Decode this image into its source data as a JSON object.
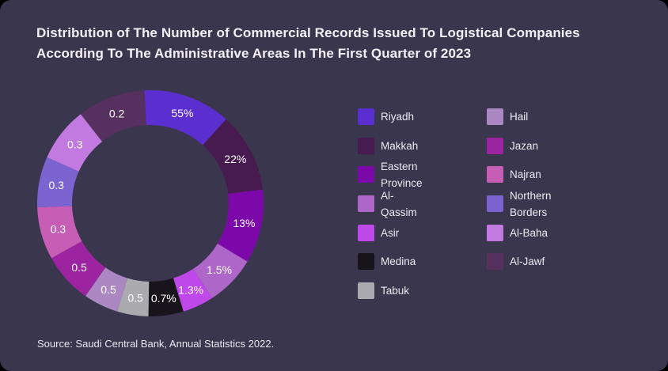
{
  "card": {
    "background": "#3a364e",
    "outer_background": "#000000"
  },
  "title": {
    "line1": "Distribution of The Number of Commercial Records Issued To Logistical Companies",
    "line2": "According To The Administrative Areas In The First Quarter of 2023"
  },
  "source": "Source: Saudi Central Bank, Annual Statistics 2022.",
  "legend": {
    "column_split": 7,
    "position": "right"
  },
  "chart_data": {
    "type": "pie",
    "subtype": "donut",
    "title": "Distribution of The Number of Commercial Records Issued To Logistical Companies According To The Administrative Areas In The First Quarter of 2023",
    "units": "percent of commercial records",
    "not_to_scale": true,
    "legend_position": "right",
    "segments": [
      {
        "label": "Riyadh",
        "value": 55,
        "value_label": "55%",
        "color": "#5b2ed0",
        "display_arc": {
          "start": -3,
          "end": 42
        }
      },
      {
        "label": "Makkah",
        "value": 22,
        "value_label": "22%",
        "color": "#471b50",
        "display_arc": {
          "start": 42,
          "end": 83
        }
      },
      {
        "label": "Eastern Province",
        "value": 13,
        "value_label": "13%",
        "color": "#7d08aa",
        "display_arc": {
          "start": 83,
          "end": 121
        }
      },
      {
        "label": "Al-Qassim",
        "value": 1.5,
        "value_label": "1.5%",
        "color": "#af66c9",
        "display_arc": {
          "start": 121,
          "end": 147
        }
      },
      {
        "label": "Asir",
        "value": 1.3,
        "value_label": "1.3%",
        "color": "#bf48ea",
        "display_arc": {
          "start": 147,
          "end": 163
        }
      },
      {
        "label": "Medina",
        "value": 0.7,
        "value_label": "0.7%",
        "color": "#17141c",
        "display_arc": {
          "start": 163,
          "end": 181
        }
      },
      {
        "label": "Tabuk",
        "value": 0.5,
        "value_label": "0.5",
        "color": "#ababaf",
        "display_arc": {
          "start": 181,
          "end": 197
        }
      },
      {
        "label": "Hail",
        "value": 0.5,
        "value_label": "0.5",
        "color": "#ac88c2",
        "display_arc": {
          "start": 197,
          "end": 215
        }
      },
      {
        "label": "Jazan",
        "value": 0.5,
        "value_label": "0.5",
        "color": "#9c24a0",
        "display_arc": {
          "start": 215,
          "end": 241
        }
      },
      {
        "label": "Najran",
        "value": 0.3,
        "value_label": "0.3",
        "color": "#c55eb4",
        "display_arc": {
          "start": 241,
          "end": 268
        }
      },
      {
        "label": "Northern Borders",
        "value": 0.3,
        "value_label": "0.3",
        "color": "#7b63d0",
        "display_arc": {
          "start": 268,
          "end": 294
        }
      },
      {
        "label": "Al-Baha",
        "value": 0.3,
        "value_label": "0.3",
        "color": "#c279e0",
        "display_arc": {
          "start": 294,
          "end": 322
        }
      },
      {
        "label": "Al-Jawf",
        "value": 0.2,
        "value_label": "0.2",
        "color": "#56305f",
        "display_arc": {
          "start": 322,
          "end": 357
        }
      }
    ]
  }
}
